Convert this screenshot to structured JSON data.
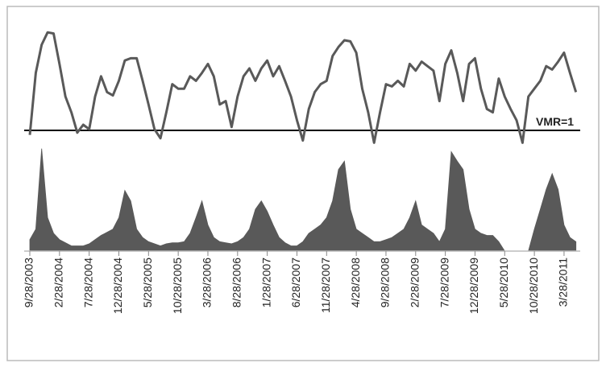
{
  "chart_data": [
    {
      "type": "line",
      "color": "#595959",
      "values": [
        0.6,
        6.1,
        8.6,
        9.7,
        9.6,
        6.9,
        4.0,
        2.6,
        0.8,
        1.5,
        1.1,
        4.0,
        5.8,
        4.4,
        4.1,
        5.4,
        7.2,
        7.4,
        7.4,
        5.4,
        3.3,
        1.1,
        0.3,
        2.6,
        5.1,
        4.7,
        4.7,
        5.8,
        5.4,
        6.1,
        6.9,
        5.8,
        3.3,
        3.6,
        1.3,
        4.0,
        5.8,
        6.5,
        5.4,
        6.5,
        7.2,
        5.8,
        6.7,
        5.4,
        4.0,
        1.9,
        0.1,
        2.9,
        4.4,
        5.1,
        5.4,
        7.6,
        8.4,
        9.0,
        8.9,
        7.9,
        4.7,
        2.6,
        -0.1,
        2.6,
        5.1,
        4.9,
        5.4,
        4.9,
        6.9,
        6.3,
        7.1,
        6.7,
        6.3,
        3.6,
        6.9,
        8.1,
        6.1,
        3.6,
        6.9,
        7.4,
        4.7,
        2.9,
        2.6,
        5.6,
        4.0,
        2.9,
        1.9,
        -0.1,
        4.0,
        4.7,
        5.4,
        6.7,
        6.4,
        7.1,
        7.9,
        6.1,
        4.4
      ],
      "ylim": [
        -1.5,
        10.5
      ],
      "reference_line": {
        "value": 1,
        "label": "VMR=1"
      }
    },
    {
      "type": "area",
      "color": "#595959",
      "categories": [
        "9/28/2003",
        null,
        null,
        null,
        null,
        "2/28/2004",
        null,
        null,
        null,
        null,
        "7/28/2004",
        null,
        null,
        null,
        null,
        "12/28/2004",
        null,
        null,
        null,
        null,
        "5/28/2005",
        null,
        null,
        null,
        null,
        "10/28/2005",
        null,
        null,
        null,
        null,
        "3/28/2006",
        null,
        null,
        null,
        null,
        "8/28/2006",
        null,
        null,
        null,
        null,
        "1/28/2007",
        null,
        null,
        null,
        null,
        "6/28/2007",
        null,
        null,
        null,
        null,
        "11/28/2007",
        null,
        null,
        null,
        null,
        "4/28/2008",
        null,
        null,
        null,
        null,
        "9/28/2008",
        null,
        null,
        null,
        null,
        "2/28/2009",
        null,
        null,
        null,
        null,
        "7/28/2009",
        null,
        null,
        null,
        null,
        "12/28/2009",
        null,
        null,
        null,
        null,
        "5/28/2010",
        null,
        null,
        null,
        null,
        "10/28/2010",
        null,
        null,
        null,
        null,
        "3/28/2011",
        null,
        null
      ],
      "values": [
        11,
        21,
        98,
        32,
        17,
        11,
        8,
        5,
        5,
        5,
        7,
        11,
        15,
        18,
        21,
        32,
        58,
        48,
        21,
        13,
        9,
        7,
        5,
        7,
        8,
        8,
        9,
        17,
        32,
        48,
        25,
        13,
        9,
        8,
        7,
        9,
        13,
        21,
        40,
        48,
        38,
        25,
        13,
        8,
        5,
        5,
        9,
        17,
        21,
        25,
        32,
        48,
        78,
        86,
        40,
        21,
        17,
        13,
        9,
        9,
        11,
        13,
        17,
        21,
        32,
        48,
        25,
        21,
        17,
        9,
        21,
        95,
        86,
        78,
        40,
        21,
        17,
        15,
        15,
        9,
        0,
        0,
        0,
        0,
        0,
        21,
        40,
        59,
        74,
        59,
        25,
        13,
        9
      ],
      "ylim": [
        0,
        100
      ]
    }
  ]
}
